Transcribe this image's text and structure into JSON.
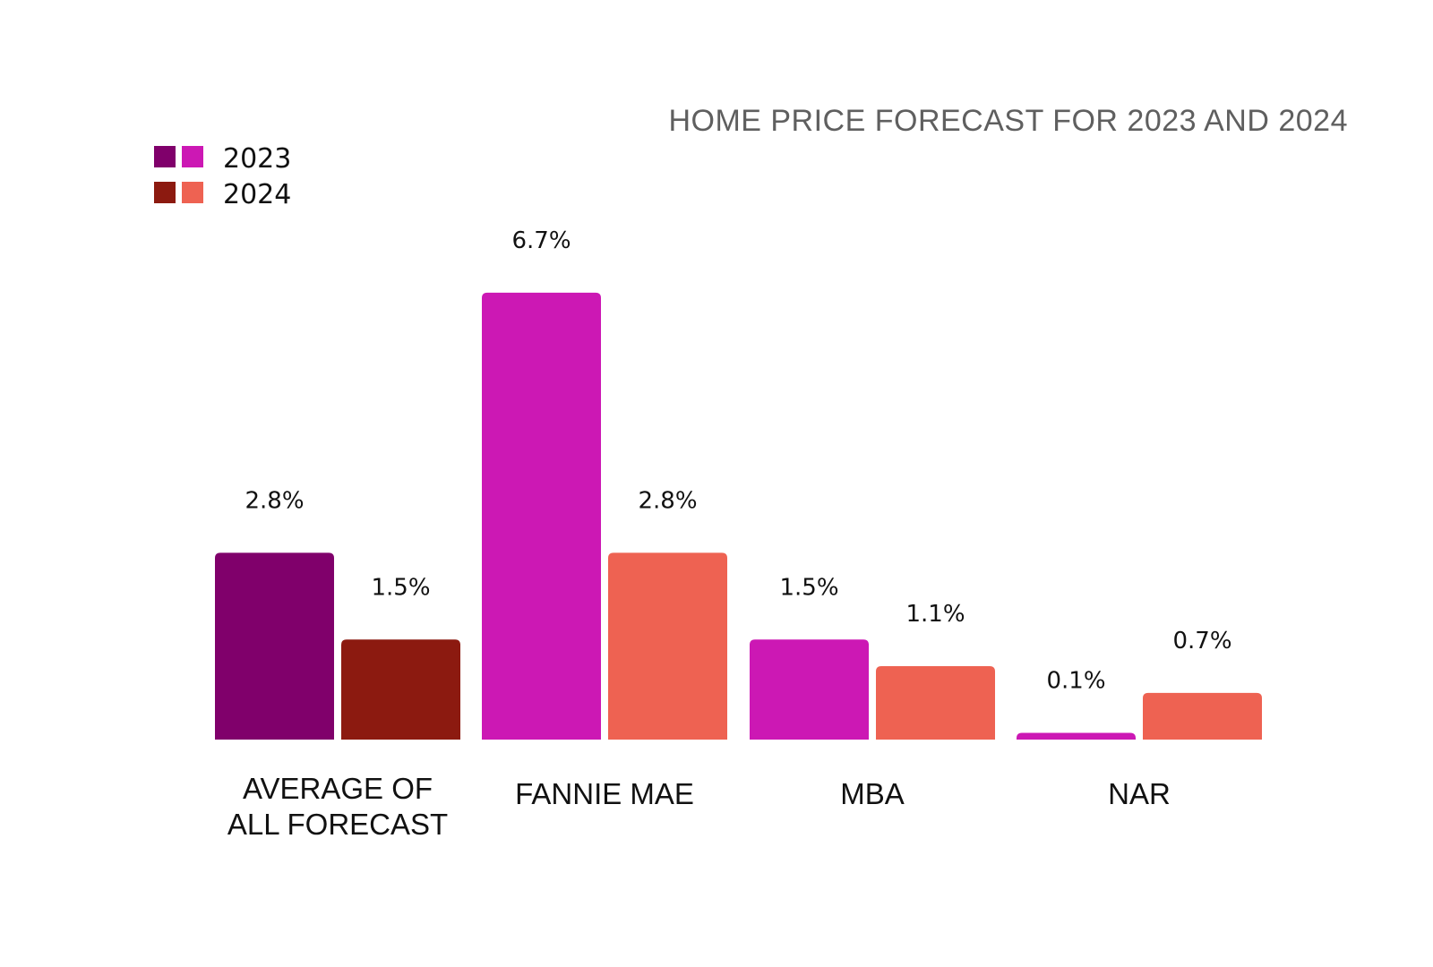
{
  "chart_data": {
    "type": "bar",
    "title": "HOME PRICE FORECAST FOR 2023 AND 2024",
    "categories": [
      [
        "AVERAGE OF",
        "ALL FORECAST"
      ],
      [
        "FANNIE MAE"
      ],
      [
        "MBA"
      ],
      [
        "NAR"
      ]
    ],
    "series": [
      {
        "name": "2023",
        "values": [
          2.8,
          6.7,
          1.5,
          0.1
        ],
        "labels": [
          "2.8%",
          "6.7%",
          "1.5%",
          "0.1%"
        ],
        "colors": [
          "#80006b",
          "#cc18b4",
          "#cc18b4",
          "#cc18b4"
        ],
        "legend_colors": [
          "#80006b",
          "#cc18b4"
        ]
      },
      {
        "name": "2024",
        "values": [
          1.5,
          2.8,
          1.1,
          0.7
        ],
        "labels": [
          "1.5%",
          "2.8%",
          "1.1%",
          "0.7%"
        ],
        "colors": [
          "#8c1a10",
          "#ee6252",
          "#ee6252",
          "#ee6252"
        ],
        "legend_colors": [
          "#8c1a10",
          "#ee6252"
        ]
      }
    ],
    "ylim": [
      0,
      6.7
    ],
    "grid": false,
    "legend_position": "top-left"
  }
}
